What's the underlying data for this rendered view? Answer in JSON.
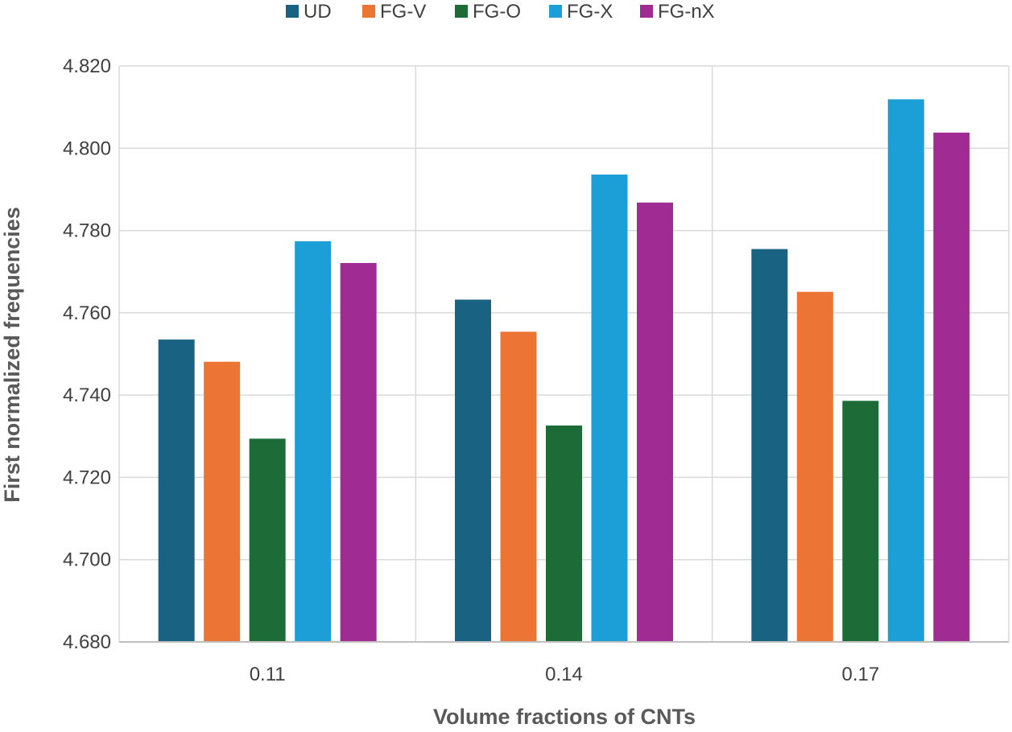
{
  "chart_data": {
    "type": "bar",
    "title": "",
    "xlabel": "Volume fractions of CNTs",
    "ylabel": "First normalized frequencies",
    "categories": [
      "0.11",
      "0.14",
      "0.17"
    ],
    "ylim": [
      4.68,
      4.82
    ],
    "yticks": [
      "4.680",
      "4.700",
      "4.720",
      "4.740",
      "4.760",
      "4.780",
      "4.800",
      "4.820"
    ],
    "grid": true,
    "legend_position": "top",
    "series": [
      {
        "name": "UD",
        "color": "#1a6282",
        "values": [
          4.7535,
          4.7632,
          4.7755
        ]
      },
      {
        "name": "FG-V",
        "color": "#ec7434",
        "values": [
          4.7481,
          4.7554,
          4.7651
        ]
      },
      {
        "name": "FG-O",
        "color": "#1d6b37",
        "values": [
          4.7294,
          4.7326,
          4.7386
        ]
      },
      {
        "name": "FG-X",
        "color": "#1c9fd6",
        "values": [
          4.7774,
          4.7936,
          4.8119
        ]
      },
      {
        "name": "FG-nX",
        "color": "#a02b93",
        "values": [
          4.7721,
          4.7868,
          4.8038
        ]
      }
    ]
  }
}
